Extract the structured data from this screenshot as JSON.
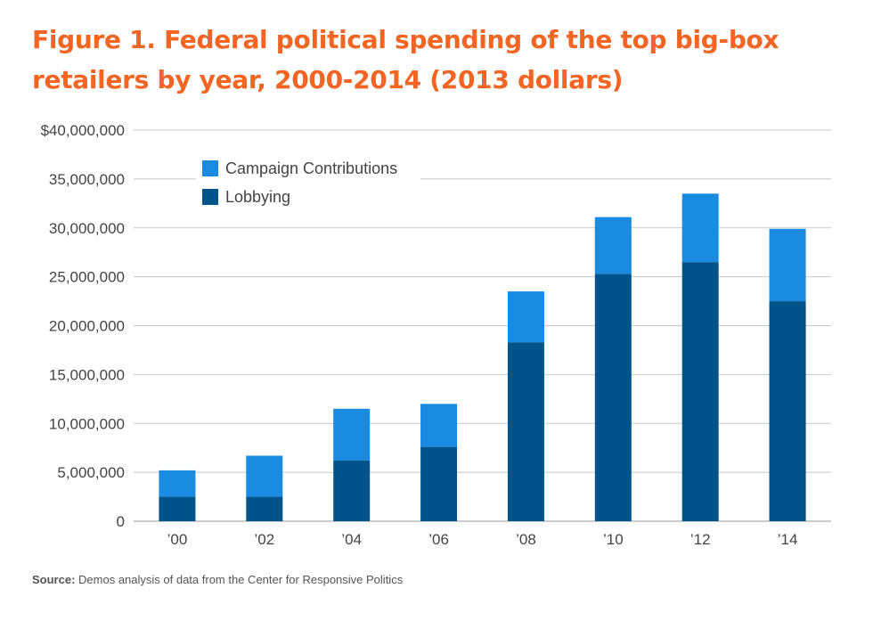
{
  "title": "Figure 1. Federal political spending of the top big-box retailers by year, 2000-2014 (2013 dollars)",
  "source": {
    "label": "Source:",
    "text": "Demos analysis of data from the Center for Responsive Politics"
  },
  "colors": {
    "title": "#f26522",
    "campaign": "#1a8be0",
    "lobbying": "#00548a",
    "grid": "#c8c8c8",
    "axis_text": "#444444"
  },
  "chart_data": {
    "type": "bar",
    "stacked": true,
    "categories": [
      "’00",
      "’02",
      "’04",
      "’06",
      "’08",
      "’10",
      "’12",
      "’14"
    ],
    "series": [
      {
        "name": "Lobbying",
        "values": [
          2500000,
          2500000,
          6200000,
          7600000,
          18300000,
          25300000,
          26500000,
          22500000
        ]
      },
      {
        "name": "Campaign Contributions",
        "values": [
          2700000,
          4200000,
          5300000,
          4400000,
          5200000,
          5800000,
          7000000,
          7400000
        ]
      }
    ],
    "ylim": [
      0,
      40000000
    ],
    "yticks": [
      "0",
      "5,000,000",
      "10,000,000",
      "15,000,000",
      "20,000,000",
      "25,000,000",
      "30,000,000",
      "35,000,000",
      "$40,000,000"
    ],
    "legend": [
      "Campaign Contributions",
      "Lobbying"
    ],
    "legend_position": "top-left",
    "grid": true,
    "xlabel": "",
    "ylabel": ""
  }
}
